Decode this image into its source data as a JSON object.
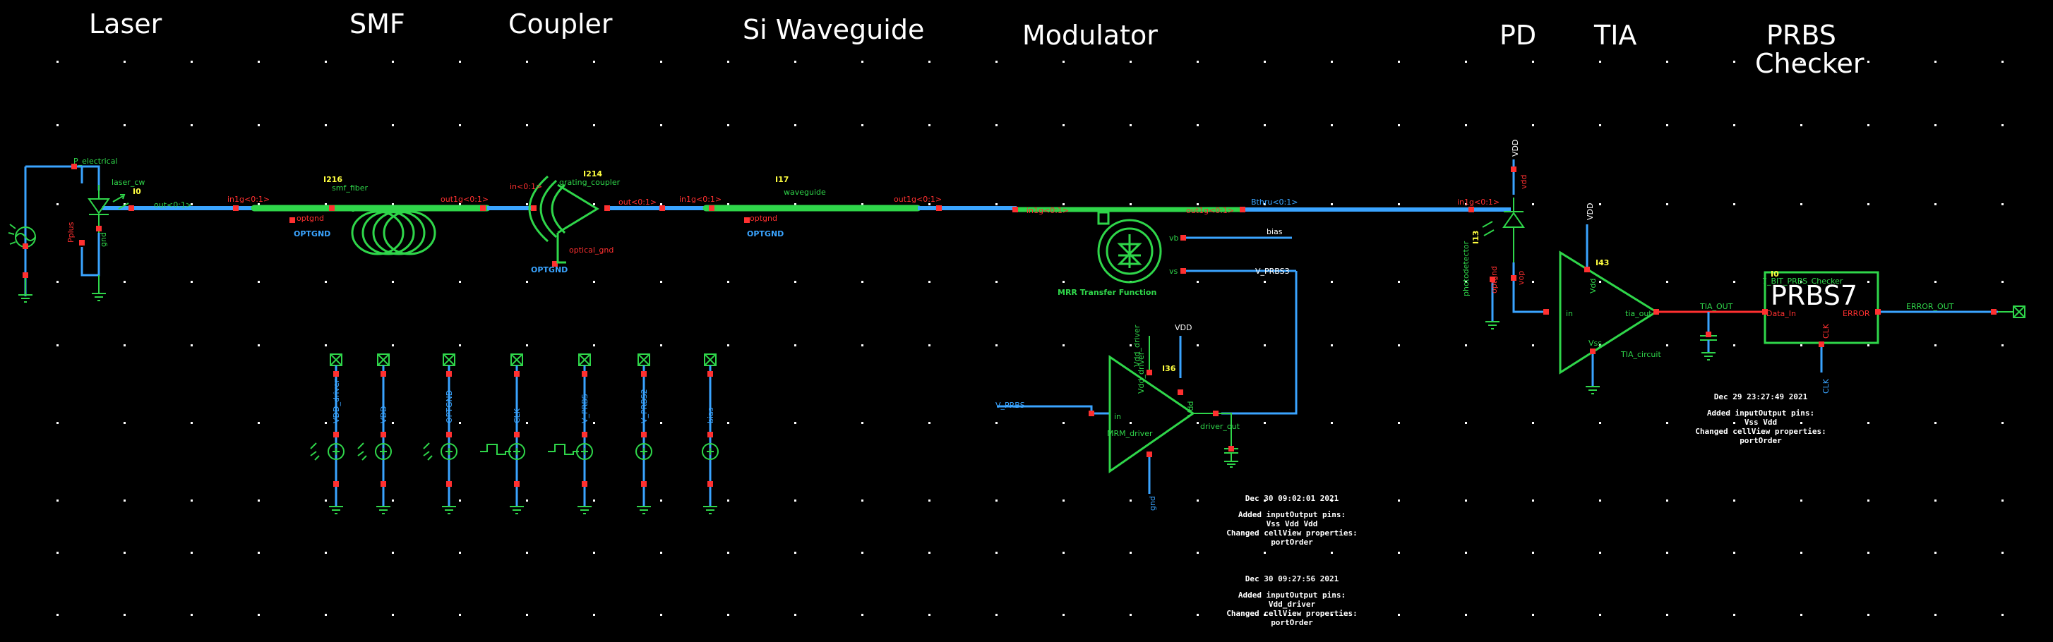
{
  "section_titles": [
    "Laser",
    "SMF",
    "Coupler",
    "Si Waveguide",
    "Modulator",
    "PD",
    "TIA",
    "PRBS",
    "Checker"
  ],
  "blocks": {
    "laser": {
      "pin": "P_electrical",
      "name": "laser_cw",
      "inst": "I0",
      "out_pin": "out<0:1>",
      "pin_plus": "Pplus",
      "pin_gnd": "gnd"
    },
    "smf": {
      "name": "smf_fiber",
      "inst": "I216",
      "in_pin": "in1g<0:1>",
      "out_pin": "out1g<0:1>",
      "gnd_pin": "optgnd",
      "gnd_label": "OPTGND"
    },
    "coupler": {
      "name": "grating_coupler",
      "inst": "I214",
      "in_pin": "in<0:1>",
      "out_pin": "out<0:1>",
      "gnd_pin": "optical_gnd",
      "gnd_label": "OPTGND"
    },
    "waveguide": {
      "name": "waveguide",
      "inst": "I17",
      "in_pin": "in1g<0:1>",
      "out_pin": "out1g<0:1>",
      "gnd_pin": "optgnd",
      "gnd_label": "OPTGND"
    },
    "modulator": {
      "in_pin": "in1g<0:1>",
      "out_pin": "out1g<0:1>",
      "thru_net": "Bthru<0:1>",
      "caption": "MRR Transfer Function",
      "vb_pin": "vb",
      "vs_pin": "vs",
      "bias_net": "bias",
      "prbs_net": "V_PRBS3"
    },
    "driver": {
      "name": "MRM_driver",
      "inst": "I36",
      "in_pin": "in",
      "vdd_pin": "Vdd_driver",
      "vdd_net": "VDD",
      "vdd_label": "Vdd",
      "out_pin": "driver_out",
      "gnd_pin": "gnd",
      "in_net": "V_PRBS",
      "vdd_driver_label": "Vdd_driver"
    },
    "pd": {
      "name": "photodetector",
      "inst": "I13",
      "in_pin": "in1g<0:1>",
      "vdd_net": "VDD",
      "vdd_pin": "vdd",
      "out_pin": "vop",
      "gnd_pin": "optgnd"
    },
    "tia": {
      "name": "TIA_circuit",
      "inst": "I43",
      "in_pin": "in",
      "out_pin": "tia_out",
      "vdd_pin": "Vdd",
      "vdd_net": "VDD",
      "vss_pin": "Vss"
    },
    "checker": {
      "text": "PRBS7",
      "inst": "I0",
      "label": "7_BIT_PRBS_Checker",
      "in_net": "TIA_OUT",
      "data_pin": "Data_In",
      "err_pin": "ERROR",
      "clk_pin": "CLK",
      "clk_net": "CLK",
      "out_net": "ERROR_OUT"
    }
  },
  "sources": [
    "VDD_driver",
    "VDD",
    "OPTGND",
    "CLK",
    "V_PRBS",
    "V_PRBS2",
    "bias"
  ],
  "notes": [
    {
      "date": "Dec 30 09:02:01 2021",
      "lines": [
        "Added inputOutput pins:",
        "Vss Vdd Vdd",
        "Changed cellView properties:",
        "portOrder"
      ]
    },
    {
      "date": "Dec 30 09:27:56 2021",
      "lines": [
        "Added inputOutput pins:",
        "Vdd_driver",
        "Changed cellView properties:",
        "portOrder"
      ]
    },
    {
      "date": "Dec 29 23:27:49 2021",
      "lines": [
        "Added inputOutput pins:",
        "Vss Vdd",
        "Changed cellView properties:",
        "portOrder"
      ]
    }
  ],
  "colors": {
    "background": "#000000",
    "wire": "#3aa4ff",
    "symbol": "#2fd64a",
    "pin": "#ff3030",
    "instance": "#ffff40",
    "grid": "#ffffff"
  },
  "icons": [
    "laser-source-icon",
    "fiber-coil-icon",
    "grating-coupler-icon",
    "mrr-ring-icon",
    "photodiode-icon",
    "voltage-source-icon",
    "ground-icon",
    "io-pin-icon"
  ]
}
